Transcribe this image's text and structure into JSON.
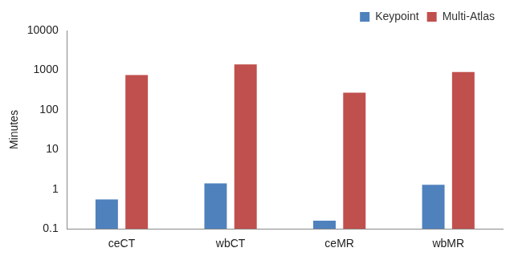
{
  "chart_data": {
    "type": "bar",
    "ylabel": "Minutes",
    "categories": [
      "ceCT",
      "wbCT",
      "ceMR",
      "wbMR"
    ],
    "series": [
      {
        "name": "Keypoint",
        "color": "#4f81bd",
        "values": [
          0.55,
          1.4,
          0.16,
          1.3
        ]
      },
      {
        "name": "Multi-Atlas",
        "color": "#c0504d",
        "values": [
          750,
          1400,
          270,
          900
        ]
      }
    ],
    "log": "y",
    "ylim": [
      0.1,
      10000
    ],
    "yticks": [
      0.1,
      1,
      10,
      100,
      1000,
      10000
    ],
    "grid": false,
    "legend": "upper right"
  }
}
